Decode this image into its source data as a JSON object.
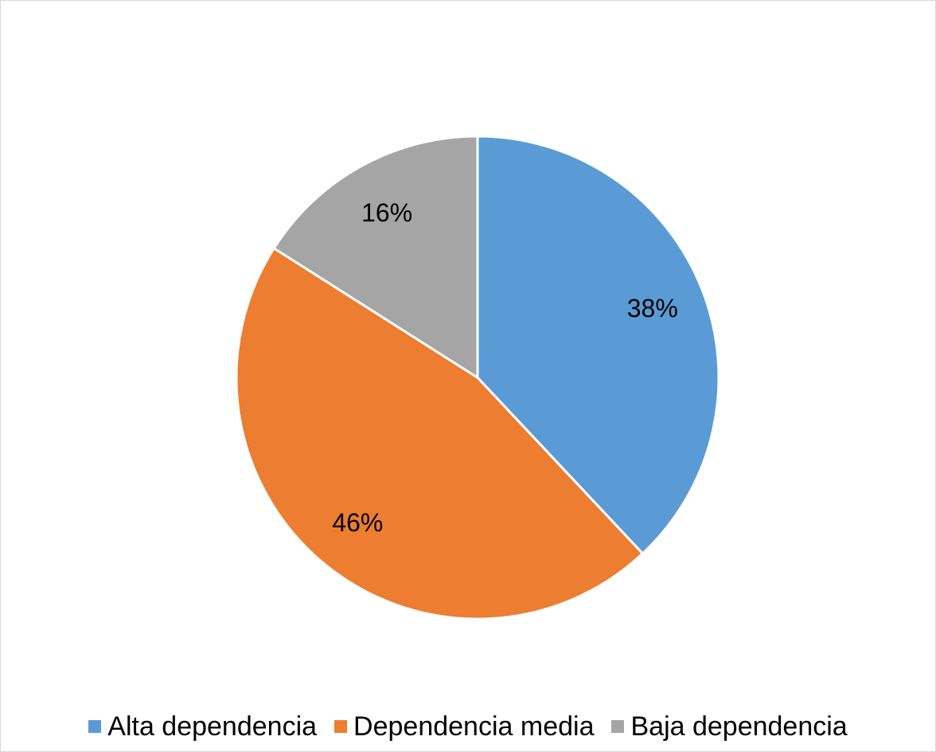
{
  "chart_data": {
    "type": "pie",
    "title": "",
    "slices": [
      {
        "label": "Alta dependencia",
        "value": 38,
        "data_label": "38%",
        "color": "#5B9BD5"
      },
      {
        "label": "Dependencia media",
        "value": 46,
        "data_label": "46%",
        "color": "#ED7D31"
      },
      {
        "label": "Baja dependencia",
        "value": 16,
        "data_label": "16%",
        "color": "#A5A5A5"
      }
    ],
    "start_angle_deg": 0,
    "direction": "clockwise",
    "legend_position": "bottom"
  },
  "legend": {
    "items": [
      {
        "label": "Alta dependencia",
        "color": "#5B9BD5"
      },
      {
        "label": "Dependencia media",
        "color": "#ED7D31"
      },
      {
        "label": "Baja dependencia",
        "color": "#A5A5A5"
      }
    ]
  }
}
